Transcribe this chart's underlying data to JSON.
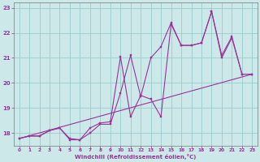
{
  "xlabel": "Windchill (Refroidissement éolien,°C)",
  "xlim": [
    -0.5,
    23.5
  ],
  "ylim": [
    17.5,
    23.2
  ],
  "yticks": [
    18,
    19,
    20,
    21,
    22,
    23
  ],
  "xticks": [
    0,
    1,
    2,
    3,
    4,
    5,
    6,
    7,
    8,
    9,
    10,
    11,
    12,
    13,
    14,
    15,
    16,
    17,
    18,
    19,
    20,
    21,
    22,
    23
  ],
  "bg_color": "#cce8e8",
  "line_color": "#993399",
  "grid_color": "#99cccc",
  "series": [
    {
      "x": [
        0,
        1,
        2,
        3,
        4,
        5,
        6,
        7,
        8,
        9,
        10,
        11,
        12,
        13,
        14,
        15,
        16,
        17,
        18,
        19,
        20,
        21,
        22,
        23
      ],
      "y": [
        17.78,
        17.88,
        17.88,
        18.1,
        18.2,
        17.78,
        17.73,
        18.2,
        18.4,
        18.45,
        21.05,
        18.65,
        19.5,
        19.35,
        18.65,
        22.35,
        21.5,
        21.5,
        21.6,
        22.85,
        21.1,
        21.85,
        20.35,
        20.35
      ]
    },
    {
      "x": [
        0,
        1,
        2,
        3,
        4,
        5,
        6,
        7,
        8,
        9,
        10,
        11,
        12,
        13,
        14,
        15,
        16,
        17,
        18,
        19,
        20,
        21,
        22,
        23
      ],
      "y": [
        17.78,
        17.88,
        17.88,
        18.1,
        18.2,
        17.73,
        17.73,
        18.0,
        18.35,
        18.35,
        19.6,
        21.1,
        19.45,
        21.0,
        21.45,
        22.4,
        21.5,
        21.5,
        21.6,
        22.85,
        21.0,
        21.8,
        20.35,
        20.35
      ]
    },
    {
      "x": [
        0,
        23
      ],
      "y": [
        17.78,
        20.35
      ]
    }
  ]
}
